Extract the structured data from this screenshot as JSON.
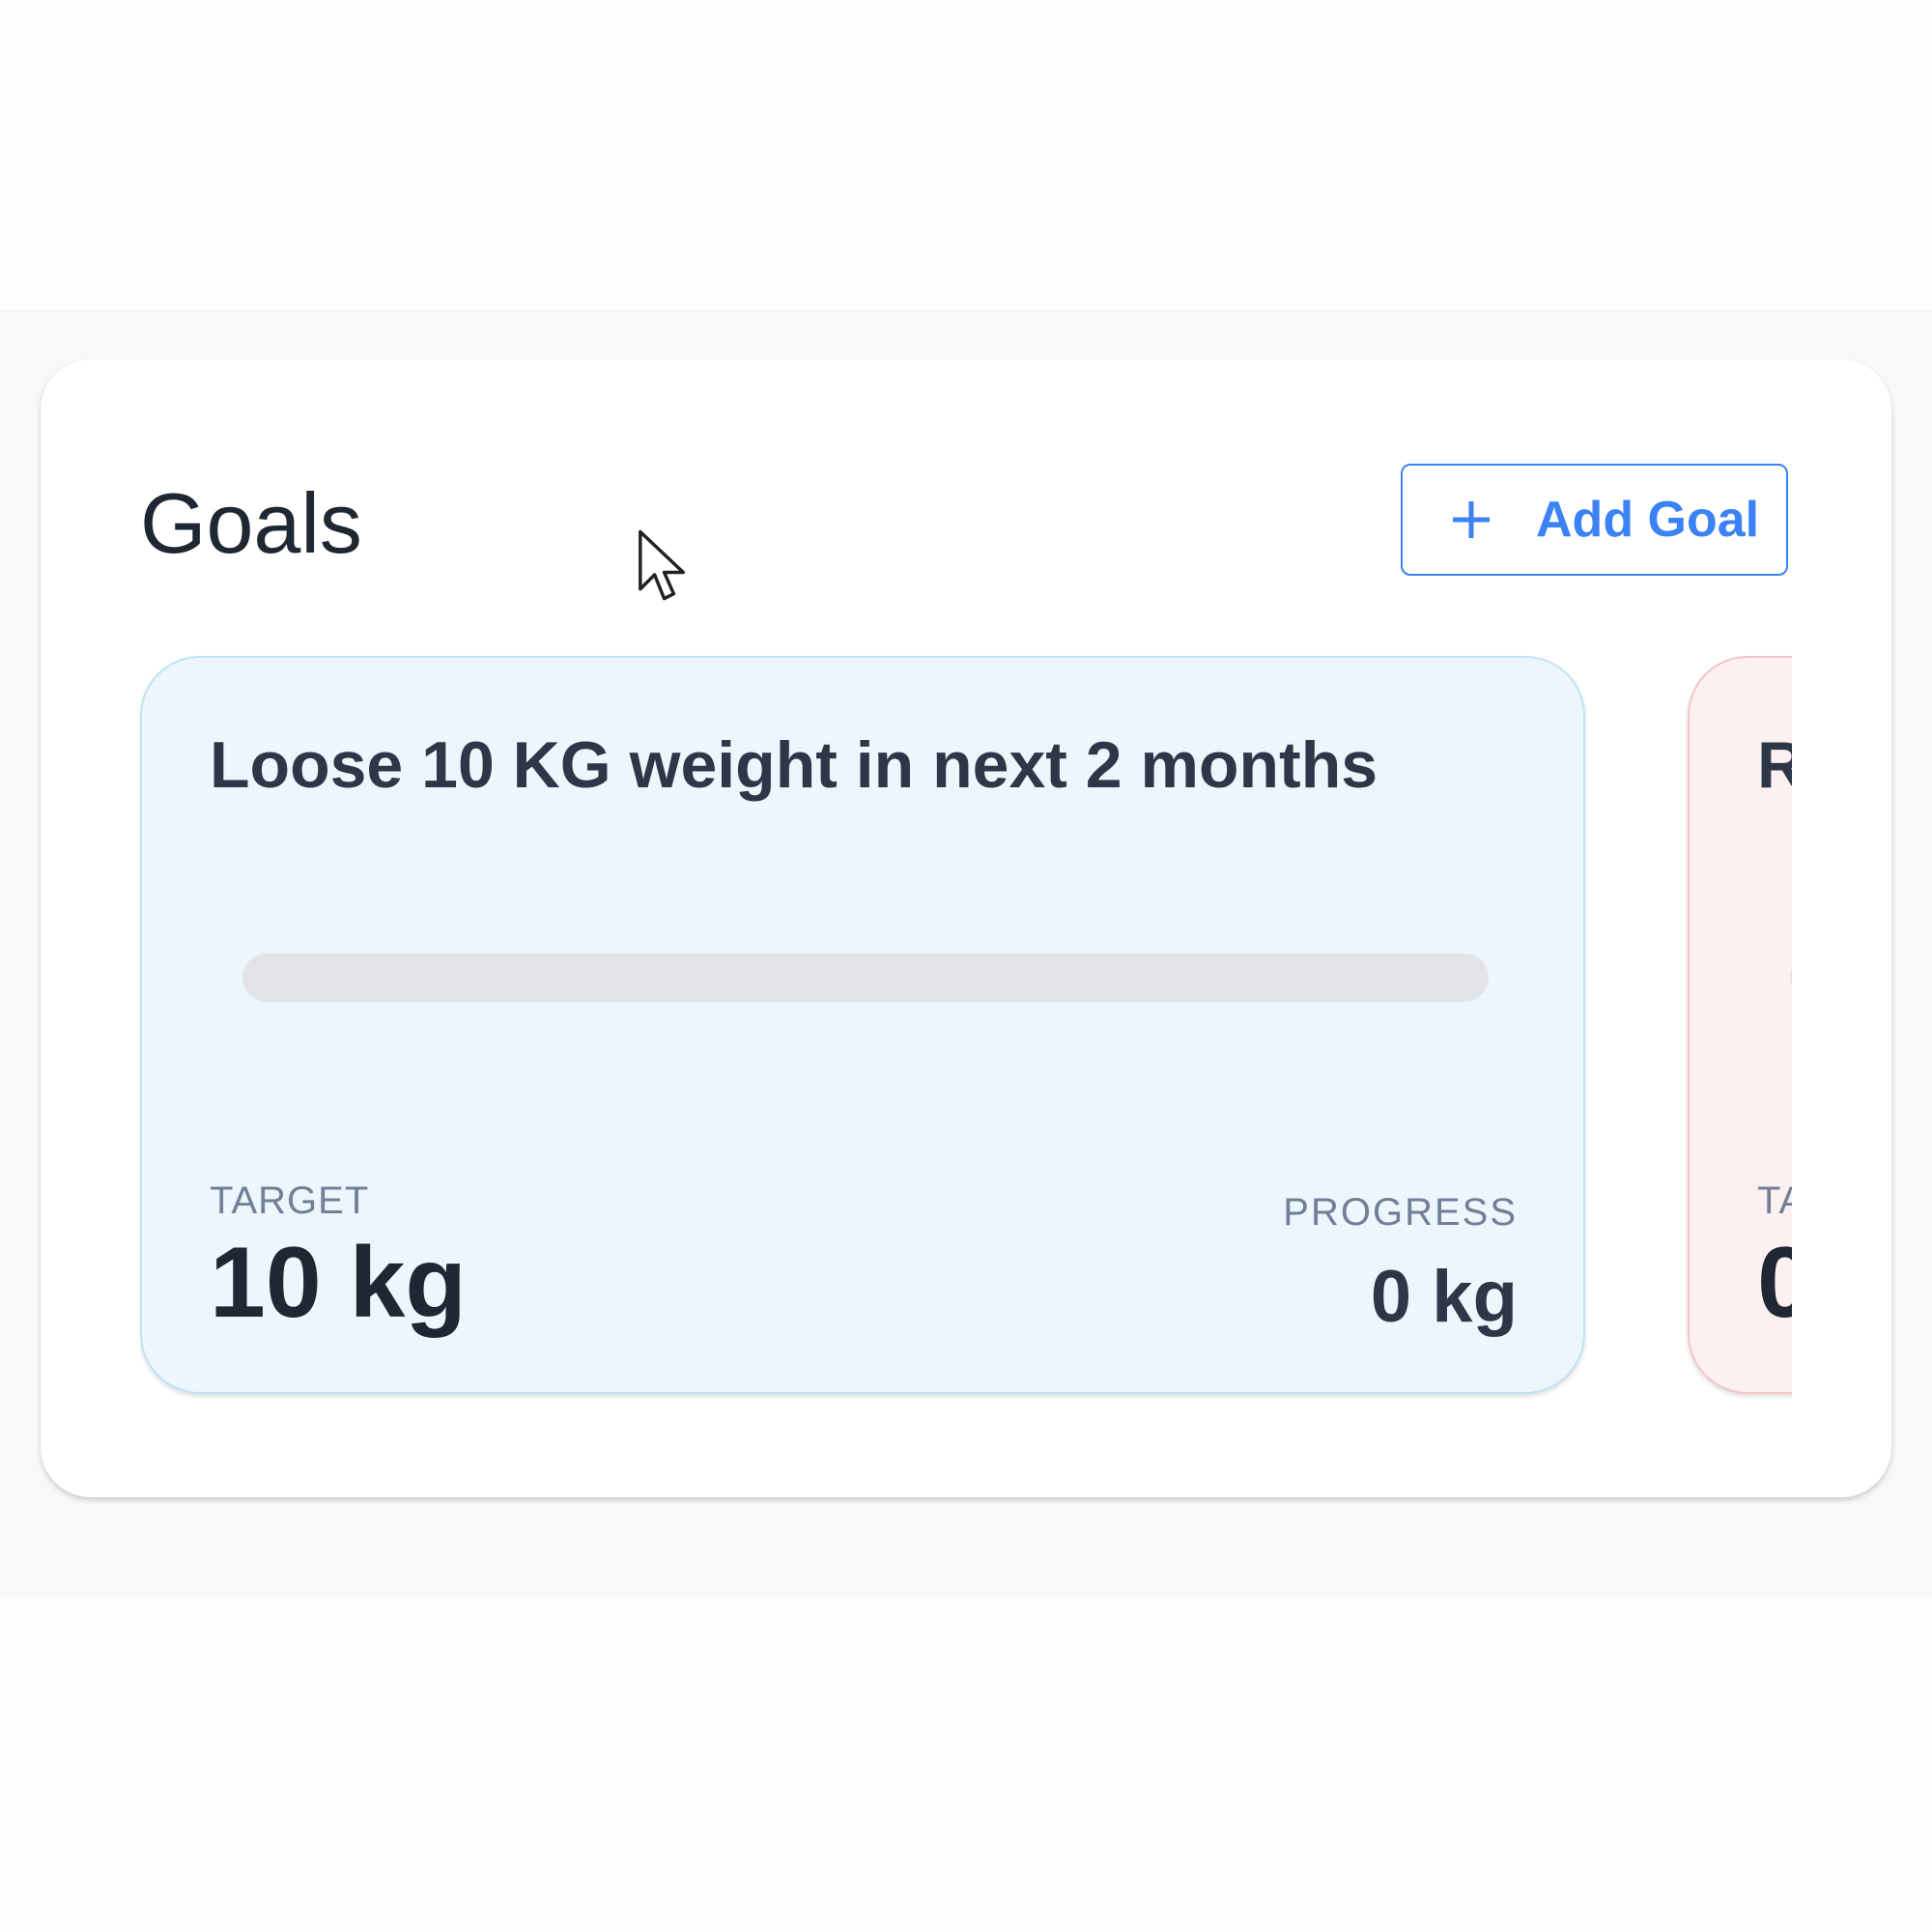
{
  "header": {
    "title": "Goals",
    "button": "Add Goal"
  },
  "goals": [
    {
      "title": "Loose 10 KG weight in next 2 months",
      "target_label": "TARGET",
      "target": "10 kg",
      "progress_label": "PROGRESS",
      "progress": "0 kg"
    },
    {
      "title": "R",
      "target_label": "TA",
      "target": "0"
    }
  ]
}
